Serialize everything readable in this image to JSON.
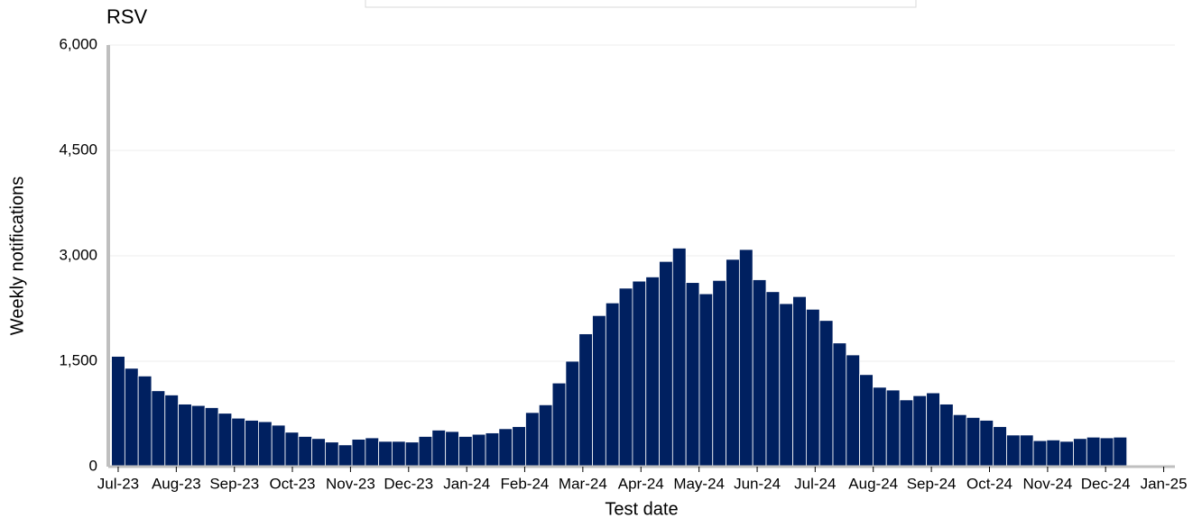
{
  "chart_data": {
    "type": "bar",
    "title": "RSV",
    "x_label": "Test date",
    "y_label": "Weekly notifications",
    "color": "#002060",
    "x": [
      0,
      1,
      2,
      3,
      4,
      5,
      6,
      7,
      8,
      9,
      10,
      11,
      12,
      13,
      14,
      15,
      16,
      17,
      18,
      19,
      20,
      21,
      22,
      23,
      24,
      25,
      26,
      27,
      28,
      29,
      30,
      31,
      32,
      33,
      34,
      35,
      36,
      37,
      38,
      39,
      40,
      41,
      42,
      43,
      44,
      45,
      46,
      47,
      48,
      49,
      50,
      51,
      52,
      53,
      54,
      55,
      56,
      57,
      58,
      59,
      60,
      61,
      62,
      63,
      64,
      65,
      66,
      67,
      68,
      69,
      70,
      71,
      72,
      73,
      74,
      75
    ],
    "values": [
      1570,
      1400,
      1290,
      1080,
      1020,
      890,
      870,
      840,
      760,
      690,
      660,
      640,
      590,
      490,
      430,
      400,
      350,
      310,
      390,
      410,
      360,
      360,
      350,
      430,
      520,
      500,
      430,
      460,
      480,
      540,
      570,
      770,
      880,
      1190,
      1500,
      1890,
      2150,
      2330,
      2540,
      2640,
      2700,
      2920,
      3110,
      2620,
      2460,
      2650,
      2950,
      3090,
      2660,
      2490,
      2320,
      2420,
      2240,
      2080,
      1760,
      1590,
      1310,
      1130,
      1090,
      950,
      1010,
      1050,
      890,
      740,
      700,
      660,
      570,
      450,
      450,
      370,
      380,
      360,
      400,
      420,
      410,
      420
    ],
    "xlim": [
      -0.74,
      79.1
    ],
    "xticks": [
      {
        "value": 0,
        "label": "Jul-23"
      },
      {
        "value": 4.35,
        "label": "Aug-23"
      },
      {
        "value": 8.7,
        "label": "Sep-23"
      },
      {
        "value": 13.04,
        "label": "Oct-23"
      },
      {
        "value": 17.39,
        "label": "Nov-23"
      },
      {
        "value": 21.74,
        "label": "Dec-23"
      },
      {
        "value": 26.09,
        "label": "Jan-24"
      },
      {
        "value": 30.43,
        "label": "Feb-24"
      },
      {
        "value": 34.78,
        "label": "Mar-24"
      },
      {
        "value": 39.13,
        "label": "Apr-24"
      },
      {
        "value": 43.48,
        "label": "May-24"
      },
      {
        "value": 47.83,
        "label": "Jun-24"
      },
      {
        "value": 52.17,
        "label": "Jul-24"
      },
      {
        "value": 56.52,
        "label": "Aug-24"
      },
      {
        "value": 60.87,
        "label": "Sep-24"
      },
      {
        "value": 65.22,
        "label": "Oct-24"
      },
      {
        "value": 69.57,
        "label": "Nov-24"
      },
      {
        "value": 73.91,
        "label": "Dec-24"
      },
      {
        "value": 78.26,
        "label": "Jan-25"
      }
    ],
    "ylim": [
      0,
      6000
    ],
    "yticks": [
      0,
      {
        "value": 1500,
        "label": "1,500"
      },
      {
        "value": 3000,
        "label": "3,000"
      },
      {
        "value": 4500,
        "label": "4,500"
      },
      {
        "value": 6000,
        "label": "6,000"
      }
    ],
    "grid": true
  }
}
